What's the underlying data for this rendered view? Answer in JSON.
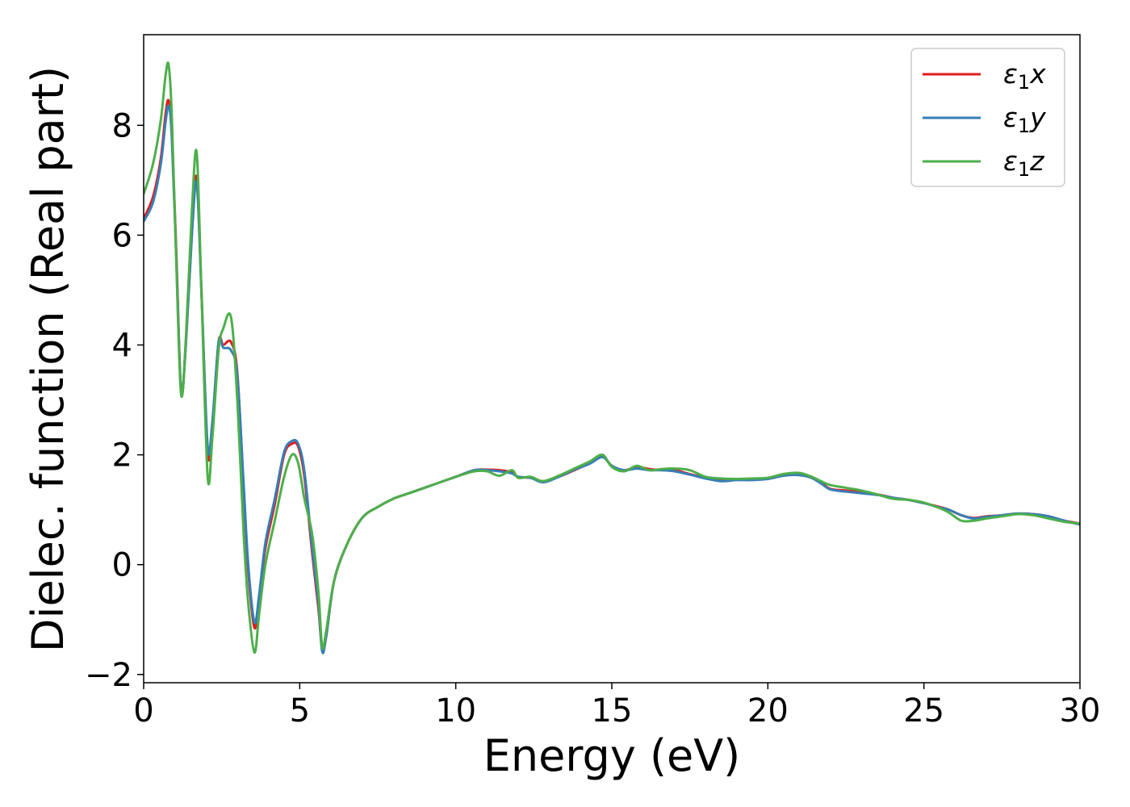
{
  "chart_data": {
    "type": "line",
    "xlabel": "Energy (eV)",
    "ylabel": "Dielec. function (Real part)",
    "xlim": [
      0,
      30
    ],
    "ylim": [
      -2.15,
      9.65
    ],
    "xticks": [
      0,
      5,
      10,
      15,
      20,
      25,
      30
    ],
    "xtick_labels": [
      "0",
      "5",
      "10",
      "15",
      "20",
      "25",
      "30"
    ],
    "yticks": [
      -2,
      0,
      2,
      4,
      6,
      8
    ],
    "ytick_labels": [
      "−2",
      "0",
      "2",
      "4",
      "6",
      "8"
    ],
    "grid": false,
    "legend_position": "top-right",
    "series": [
      {
        "name": "ε₁x",
        "legend": {
          "main": "ε",
          "sub": "1",
          "var": "x"
        },
        "color": "#e41a1c",
        "x": [
          0,
          0.3,
          0.55,
          0.7,
          0.8,
          0.9,
          1.05,
          1.2,
          1.35,
          1.55,
          1.7,
          1.85,
          2.05,
          2.2,
          2.4,
          2.55,
          2.8,
          3.0,
          3.2,
          3.35,
          3.55,
          3.7,
          3.9,
          4.2,
          4.5,
          4.75,
          4.95,
          5.15,
          5.4,
          5.6,
          5.72,
          5.85,
          6.1,
          6.5,
          7.0,
          7.5,
          8.0,
          8.5,
          9.0,
          9.5,
          10.0,
          10.6,
          11.0,
          11.4,
          11.8,
          12.0,
          12.4,
          12.8,
          13.3,
          13.8,
          14.3,
          14.7,
          15.0,
          15.4,
          15.8,
          16.2,
          16.6,
          17.0,
          17.5,
          18.0,
          18.5,
          19.0,
          19.5,
          20.0,
          20.5,
          21.0,
          21.4,
          21.7,
          22.0,
          22.5,
          23.0,
          23.5,
          24.0,
          24.5,
          25.0,
          25.5,
          25.8,
          26.2,
          26.6,
          27.0,
          27.5,
          28.0,
          28.5,
          29.0,
          29.5,
          30.0
        ],
        "y": [
          6.3,
          6.7,
          7.4,
          8.2,
          8.45,
          7.9,
          5.6,
          3.15,
          4.0,
          6.1,
          7.05,
          5.0,
          2.05,
          2.5,
          4.05,
          4.0,
          4.05,
          3.5,
          1.4,
          -0.1,
          -1.15,
          -0.6,
          0.3,
          1.1,
          2.0,
          2.2,
          2.15,
          1.6,
          0.2,
          -0.8,
          -1.55,
          -1.3,
          -0.3,
          0.35,
          0.85,
          1.05,
          1.2,
          1.3,
          1.4,
          1.5,
          1.6,
          1.72,
          1.73,
          1.72,
          1.68,
          1.6,
          1.58,
          1.52,
          1.6,
          1.72,
          1.85,
          1.97,
          1.8,
          1.72,
          1.78,
          1.74,
          1.72,
          1.72,
          1.65,
          1.58,
          1.55,
          1.55,
          1.55,
          1.57,
          1.63,
          1.65,
          1.6,
          1.5,
          1.38,
          1.35,
          1.32,
          1.28,
          1.22,
          1.18,
          1.12,
          1.05,
          1.0,
          0.9,
          0.85,
          0.88,
          0.9,
          0.93,
          0.92,
          0.88,
          0.8,
          0.75
        ]
      },
      {
        "name": "ε₁y",
        "legend": {
          "main": "ε",
          "sub": "1",
          "var": "y"
        },
        "color": "#377eb8",
        "x": [
          0,
          0.3,
          0.55,
          0.7,
          0.8,
          0.9,
          1.05,
          1.2,
          1.35,
          1.55,
          1.7,
          1.85,
          2.05,
          2.2,
          2.4,
          2.55,
          2.8,
          3.0,
          3.2,
          3.35,
          3.55,
          3.7,
          3.9,
          4.2,
          4.5,
          4.75,
          4.95,
          5.15,
          5.4,
          5.6,
          5.72,
          5.85,
          6.1,
          6.5,
          7.0,
          7.5,
          8.0,
          8.5,
          9.0,
          9.5,
          10.0,
          10.6,
          11.0,
          11.4,
          11.8,
          12.0,
          12.4,
          12.8,
          13.3,
          13.8,
          14.3,
          14.7,
          15.0,
          15.4,
          15.8,
          16.2,
          16.6,
          17.0,
          17.5,
          18.0,
          18.5,
          19.0,
          19.5,
          20.0,
          20.5,
          21.0,
          21.4,
          21.7,
          22.0,
          22.5,
          23.0,
          23.5,
          24.0,
          24.5,
          25.0,
          25.5,
          25.8,
          26.2,
          26.6,
          27.0,
          27.5,
          28.0,
          28.5,
          29.0,
          29.5,
          30.0
        ],
        "y": [
          6.25,
          6.6,
          7.3,
          8.05,
          8.35,
          7.8,
          5.5,
          3.15,
          4.0,
          6.05,
          6.95,
          5.0,
          2.15,
          2.6,
          4.05,
          3.95,
          3.9,
          3.45,
          1.5,
          0.0,
          -1.05,
          -0.55,
          0.4,
          1.2,
          2.05,
          2.25,
          2.2,
          1.7,
          0.3,
          -0.7,
          -1.58,
          -1.3,
          -0.3,
          0.35,
          0.85,
          1.05,
          1.2,
          1.3,
          1.4,
          1.5,
          1.6,
          1.72,
          1.72,
          1.7,
          1.66,
          1.6,
          1.58,
          1.5,
          1.6,
          1.73,
          1.84,
          1.96,
          1.8,
          1.72,
          1.75,
          1.72,
          1.72,
          1.7,
          1.64,
          1.57,
          1.52,
          1.54,
          1.54,
          1.56,
          1.62,
          1.63,
          1.58,
          1.48,
          1.37,
          1.33,
          1.3,
          1.27,
          1.22,
          1.18,
          1.12,
          1.04,
          1.0,
          0.9,
          0.84,
          0.87,
          0.9,
          0.93,
          0.92,
          0.88,
          0.8,
          0.73
        ]
      },
      {
        "name": "ε₁z",
        "legend": {
          "main": "ε",
          "sub": "1",
          "var": "z"
        },
        "color": "#4daf4a",
        "x": [
          0,
          0.3,
          0.55,
          0.7,
          0.8,
          0.9,
          1.05,
          1.2,
          1.35,
          1.55,
          1.7,
          1.85,
          2.05,
          2.2,
          2.4,
          2.55,
          2.8,
          3.0,
          3.2,
          3.35,
          3.55,
          3.7,
          3.9,
          4.2,
          4.5,
          4.75,
          4.95,
          5.15,
          5.4,
          5.6,
          5.72,
          5.85,
          6.1,
          6.5,
          7.0,
          7.5,
          8.0,
          8.5,
          9.0,
          9.5,
          10.0,
          10.6,
          11.0,
          11.4,
          11.8,
          12.0,
          12.4,
          12.8,
          13.3,
          13.8,
          14.3,
          14.7,
          15.0,
          15.4,
          15.8,
          16.2,
          16.6,
          17.0,
          17.5,
          18.0,
          18.5,
          19.0,
          19.5,
          20.0,
          20.5,
          21.0,
          21.4,
          21.7,
          22.0,
          22.5,
          23.0,
          23.5,
          24.0,
          24.5,
          25.0,
          25.5,
          25.8,
          26.2,
          26.6,
          27.0,
          27.5,
          28.0,
          28.5,
          29.0,
          29.5,
          30.0
        ],
        "y": [
          6.75,
          7.3,
          8.1,
          8.9,
          9.1,
          8.2,
          5.4,
          3.1,
          4.1,
          6.5,
          7.5,
          5.0,
          1.6,
          2.3,
          3.9,
          4.3,
          4.5,
          3.0,
          0.6,
          -0.7,
          -1.6,
          -0.9,
          0.0,
          0.8,
          1.6,
          2.0,
          1.85,
          1.2,
          0.55,
          -0.5,
          -1.5,
          -1.2,
          -0.3,
          0.35,
          0.85,
          1.05,
          1.2,
          1.3,
          1.4,
          1.5,
          1.6,
          1.7,
          1.7,
          1.62,
          1.72,
          1.58,
          1.6,
          1.52,
          1.62,
          1.75,
          1.88,
          2.0,
          1.78,
          1.7,
          1.8,
          1.72,
          1.74,
          1.75,
          1.72,
          1.6,
          1.57,
          1.56,
          1.57,
          1.58,
          1.65,
          1.67,
          1.6,
          1.52,
          1.45,
          1.4,
          1.35,
          1.28,
          1.2,
          1.18,
          1.13,
          1.03,
          0.95,
          0.8,
          0.8,
          0.84,
          0.88,
          0.92,
          0.9,
          0.84,
          0.78,
          0.75
        ]
      }
    ]
  }
}
